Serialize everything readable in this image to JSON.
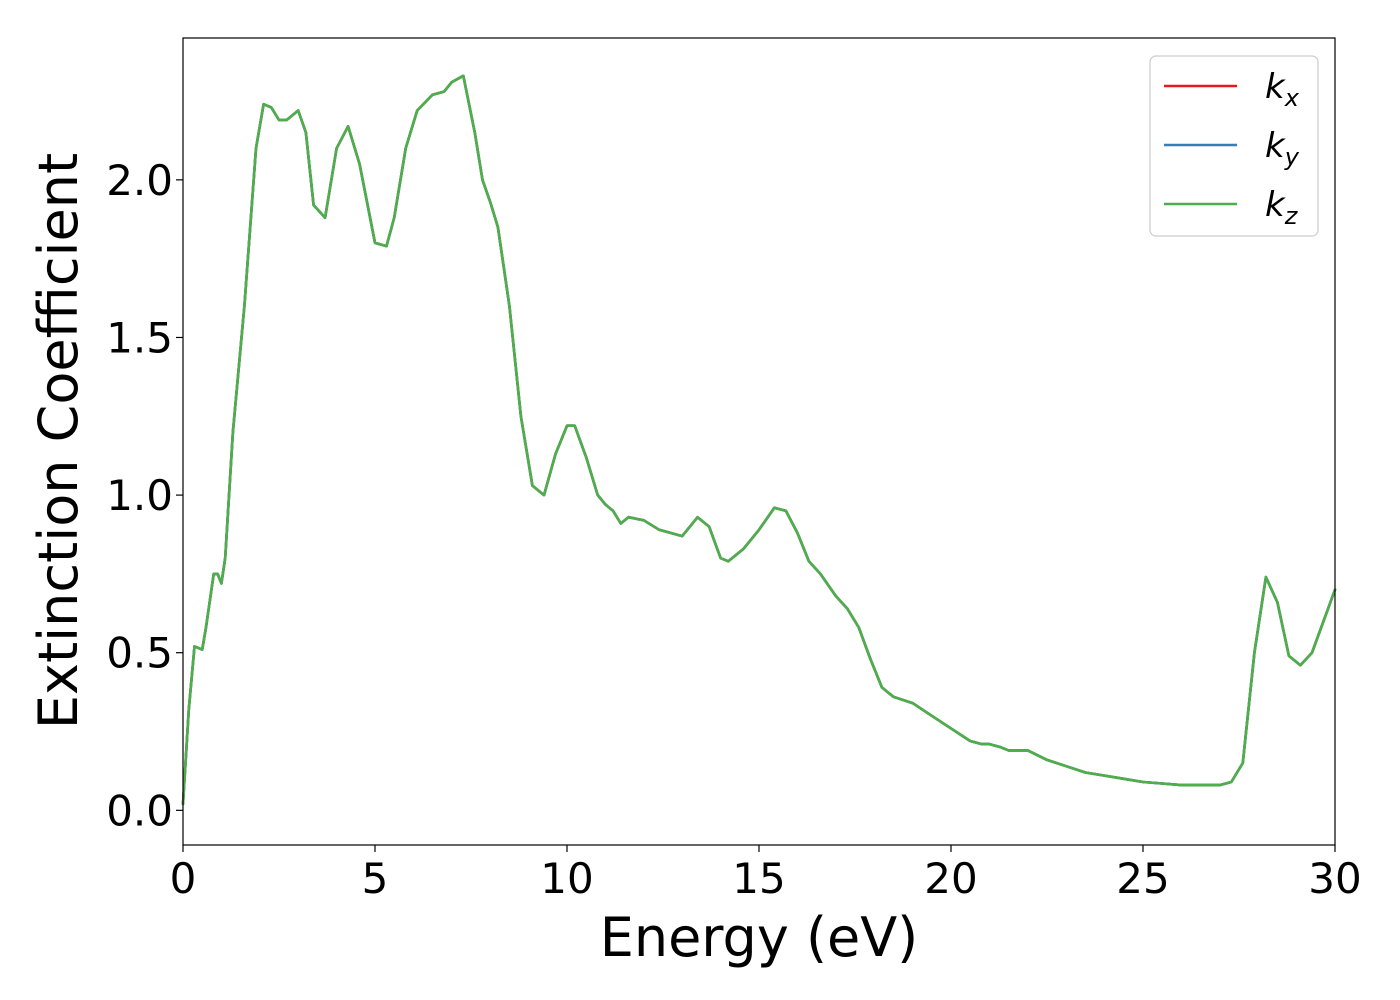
{
  "chart_data": {
    "type": "line",
    "xlabel": "Energy (eV)",
    "ylabel": "Extinction Coefficient",
    "xlim": [
      0,
      30
    ],
    "ylim": [
      -0.11,
      2.45
    ],
    "xticks": [
      0,
      5,
      10,
      15,
      20,
      25,
      30
    ],
    "xtick_labels": [
      "0",
      "5",
      "10",
      "15",
      "20",
      "25",
      "30"
    ],
    "yticks": [
      0.0,
      0.5,
      1.0,
      1.5,
      2.0
    ],
    "ytick_labels": [
      "0.0",
      "0.5",
      "1.0",
      "1.5",
      "2.0"
    ],
    "grid": false,
    "legend_position": "top-right",
    "colors": {
      "k_x": "#e41a1c",
      "k_y": "#377eb8",
      "k_z": "#4daf4a"
    },
    "legend": [
      {
        "base": "k",
        "sub": "x",
        "color": "#e41a1c"
      },
      {
        "base": "k",
        "sub": "y",
        "color": "#377eb8"
      },
      {
        "base": "k",
        "sub": "z",
        "color": "#4daf4a"
      }
    ],
    "x": [
      0,
      0.15,
      0.3,
      0.5,
      0.6,
      0.8,
      0.9,
      1.0,
      1.1,
      1.3,
      1.6,
      1.9,
      2.1,
      2.3,
      2.5,
      2.7,
      3.0,
      3.2,
      3.4,
      3.7,
      4.0,
      4.3,
      4.6,
      5.0,
      5.3,
      5.5,
      5.8,
      6.1,
      6.5,
      6.8,
      7.0,
      7.3,
      7.6,
      7.8,
      8.0,
      8.2,
      8.5,
      8.8,
      9.1,
      9.4,
      9.7,
      10.0,
      10.2,
      10.5,
      10.8,
      11.0,
      11.2,
      11.4,
      11.6,
      12.0,
      12.4,
      13.0,
      13.4,
      13.7,
      14.0,
      14.2,
      14.6,
      15.0,
      15.4,
      15.7,
      16.0,
      16.3,
      16.6,
      17.0,
      17.3,
      17.6,
      17.9,
      18.2,
      18.5,
      19.0,
      19.5,
      20.0,
      20.5,
      20.8,
      21.0,
      21.3,
      21.5,
      22.0,
      22.5,
      23.0,
      23.5,
      24.0,
      24.5,
      25.0,
      25.5,
      26.0,
      26.5,
      27.0,
      27.3,
      27.6,
      27.9,
      28.2,
      28.5,
      28.8,
      29.1,
      29.4,
      29.7,
      30.0
    ],
    "series": [
      {
        "name": "k_x",
        "values": [
          0.02,
          0.32,
          0.52,
          0.51,
          0.58,
          0.75,
          0.75,
          0.72,
          0.8,
          1.2,
          1.6,
          2.1,
          2.24,
          2.23,
          2.19,
          2.19,
          2.22,
          2.15,
          1.92,
          1.88,
          2.1,
          2.17,
          2.05,
          1.8,
          1.79,
          1.88,
          2.1,
          2.22,
          2.27,
          2.28,
          2.31,
          2.33,
          2.15,
          2.0,
          1.93,
          1.85,
          1.6,
          1.25,
          1.03,
          1.0,
          1.13,
          1.22,
          1.22,
          1.12,
          1.0,
          0.97,
          0.95,
          0.91,
          0.93,
          0.92,
          0.89,
          0.87,
          0.93,
          0.9,
          0.8,
          0.79,
          0.83,
          0.89,
          0.96,
          0.95,
          0.88,
          0.79,
          0.75,
          0.68,
          0.64,
          0.58,
          0.48,
          0.39,
          0.36,
          0.34,
          0.3,
          0.26,
          0.22,
          0.21,
          0.21,
          0.2,
          0.19,
          0.19,
          0.16,
          0.14,
          0.12,
          0.11,
          0.1,
          0.09,
          0.085,
          0.08,
          0.08,
          0.08,
          0.09,
          0.15,
          0.5,
          0.74,
          0.66,
          0.49,
          0.46,
          0.5,
          0.6,
          0.7
        ]
      },
      {
        "name": "k_y",
        "values": [
          0.02,
          0.32,
          0.52,
          0.51,
          0.58,
          0.75,
          0.75,
          0.72,
          0.8,
          1.2,
          1.6,
          2.1,
          2.24,
          2.23,
          2.19,
          2.19,
          2.22,
          2.15,
          1.92,
          1.88,
          2.1,
          2.17,
          2.05,
          1.8,
          1.79,
          1.88,
          2.1,
          2.22,
          2.27,
          2.28,
          2.31,
          2.33,
          2.15,
          2.0,
          1.93,
          1.85,
          1.6,
          1.25,
          1.03,
          1.0,
          1.13,
          1.22,
          1.22,
          1.12,
          1.0,
          0.97,
          0.95,
          0.91,
          0.93,
          0.92,
          0.89,
          0.87,
          0.93,
          0.9,
          0.8,
          0.79,
          0.83,
          0.89,
          0.96,
          0.95,
          0.88,
          0.79,
          0.75,
          0.68,
          0.64,
          0.58,
          0.48,
          0.39,
          0.36,
          0.34,
          0.3,
          0.26,
          0.22,
          0.21,
          0.21,
          0.2,
          0.19,
          0.19,
          0.16,
          0.14,
          0.12,
          0.11,
          0.1,
          0.09,
          0.085,
          0.08,
          0.08,
          0.08,
          0.09,
          0.15,
          0.5,
          0.74,
          0.66,
          0.49,
          0.46,
          0.5,
          0.6,
          0.7
        ]
      },
      {
        "name": "k_z",
        "values": [
          0.02,
          0.32,
          0.52,
          0.51,
          0.58,
          0.75,
          0.75,
          0.72,
          0.8,
          1.2,
          1.6,
          2.1,
          2.24,
          2.23,
          2.19,
          2.19,
          2.22,
          2.15,
          1.92,
          1.88,
          2.1,
          2.17,
          2.05,
          1.8,
          1.79,
          1.88,
          2.1,
          2.22,
          2.27,
          2.28,
          2.31,
          2.33,
          2.15,
          2.0,
          1.93,
          1.85,
          1.6,
          1.25,
          1.03,
          1.0,
          1.13,
          1.22,
          1.22,
          1.12,
          1.0,
          0.97,
          0.95,
          0.91,
          0.93,
          0.92,
          0.89,
          0.87,
          0.93,
          0.9,
          0.8,
          0.79,
          0.83,
          0.89,
          0.96,
          0.95,
          0.88,
          0.79,
          0.75,
          0.68,
          0.64,
          0.58,
          0.48,
          0.39,
          0.36,
          0.34,
          0.3,
          0.26,
          0.22,
          0.21,
          0.21,
          0.2,
          0.19,
          0.19,
          0.16,
          0.14,
          0.12,
          0.11,
          0.1,
          0.09,
          0.085,
          0.08,
          0.08,
          0.08,
          0.09,
          0.15,
          0.5,
          0.74,
          0.66,
          0.49,
          0.46,
          0.5,
          0.6,
          0.7
        ]
      }
    ]
  }
}
